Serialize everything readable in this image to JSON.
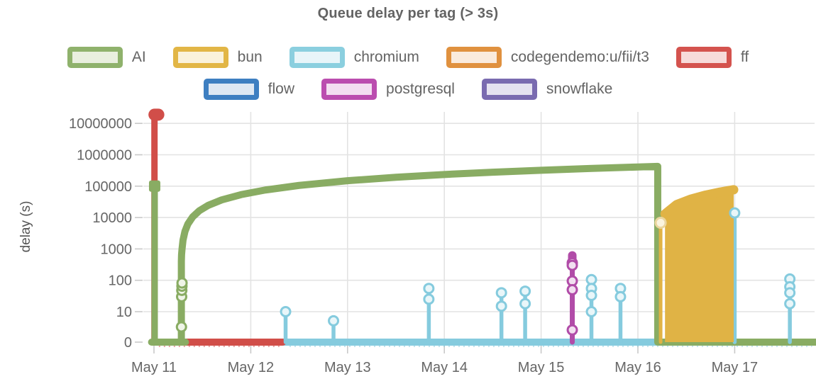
{
  "title": {
    "text": "Queue delay per tag (> 3s)"
  },
  "legend": {
    "rows": [
      [
        {
          "label": "AI",
          "color": "#8FB26C",
          "fill": "#E9EFDF"
        },
        {
          "label": "bun",
          "color": "#E2B646",
          "fill": "#FAF2DB"
        },
        {
          "label": "chromium",
          "color": "#8BCFDF",
          "fill": "#E8F5F9"
        },
        {
          "label": "codegendemo:u/fii/t3",
          "color": "#E0913F",
          "fill": "#FAEBDD"
        },
        {
          "label": "ff",
          "color": "#D4534E",
          "fill": "#F7DBDA"
        }
      ],
      [
        {
          "label": "flow",
          "color": "#3E7FC1",
          "fill": "#DEE8F3"
        },
        {
          "label": "postgresql",
          "color": "#BB4DAF",
          "fill": "#F3DEF1"
        },
        {
          "label": "snowflake",
          "color": "#7A6BB0",
          "fill": "#E5E2F0"
        }
      ]
    ]
  },
  "chart_data": {
    "type": "line",
    "title": "Queue delay per tag (> 3s)",
    "xlabel": "",
    "ylabel": "delay (s)",
    "x_axis": {
      "unit": "date (May 2024, day fraction)",
      "ticks": [
        11,
        12,
        13,
        14,
        15,
        16,
        17
      ],
      "tick_labels": [
        "May 11",
        "May 12",
        "May 13",
        "May 14",
        "May 15",
        "May 16",
        "May 17"
      ],
      "range": [
        10.89,
        17.84
      ],
      "grid": true
    },
    "y_axis": {
      "scale": "symlog",
      "linthresh": 10,
      "tick_values": [
        0,
        10,
        100,
        1000,
        10000,
        100000,
        1000000,
        10000000
      ],
      "tick_labels": [
        "0",
        "10",
        "100",
        "1000",
        "10000",
        "100000",
        "1000000",
        "10000000"
      ],
      "range": [
        0,
        25000000
      ],
      "grid": true
    },
    "series": [
      {
        "name": "chromium",
        "color": "#85CBDE",
        "elements": [
          {
            "kind": "line",
            "w": 10,
            "pts": [
              [
                12.33,
                0
              ],
              [
                17.84,
                0
              ]
            ]
          },
          {
            "kind": "dots",
            "w": 2,
            "dy": 6,
            "pts": [
              [
                12.4,
                0
              ],
              [
                17.8,
                0
              ]
            ]
          }
        ]
      },
      {
        "name": "ff",
        "color": "#D14E49",
        "elements": [
          {
            "kind": "line",
            "w": 10,
            "pts": [
              [
                11.005,
                0
              ],
              [
                12.33,
                0
              ]
            ]
          },
          {
            "kind": "dots",
            "w": 2,
            "dy": 6,
            "pts": [
              [
                11.05,
                0
              ],
              [
                12.3,
                0
              ]
            ]
          },
          {
            "kind": "line",
            "w": 9,
            "pts": [
              [
                11.005,
                0
              ],
              [
                11.005,
                19000000
              ]
            ]
          },
          {
            "kind": "line",
            "w": 17,
            "pts": [
              [
                11.005,
                19000000
              ],
              [
                11.045,
                19000000
              ]
            ]
          }
        ]
      },
      {
        "name": "AI",
        "color": "#89AC63",
        "elements": [
          {
            "kind": "line",
            "w": 10,
            "pts": [
              [
                10.975,
                0
              ],
              [
                11.325,
                0
              ]
            ]
          },
          {
            "kind": "line",
            "w": 9,
            "pts": [
              [
                11.007,
                0
              ],
              [
                11.007,
                100000
              ]
            ]
          },
          {
            "kind": "square",
            "size": 16,
            "at": [
              11.007,
              100000
            ]
          },
          {
            "kind": "line",
            "w": 10,
            "pts": [
              [
                11.283,
                0
              ],
              [
                11.283,
                400
              ],
              [
                11.285,
                650
              ],
              [
                11.29,
                1000
              ],
              [
                11.3,
                1900
              ],
              [
                11.32,
                3600
              ],
              [
                11.35,
                6200
              ],
              [
                11.4,
                10500
              ],
              [
                11.47,
                16600
              ],
              [
                11.56,
                24400
              ],
              [
                11.7,
                36500
              ],
              [
                11.9,
                53700
              ],
              [
                12.15,
                75300
              ],
              [
                12.5,
                105600
              ],
              [
                13.0,
                148800
              ],
              [
                13.5,
                192000
              ],
              [
                14.0,
                235200
              ],
              [
                14.5,
                278400
              ],
              [
                15.0,
                321600
              ],
              [
                15.5,
                364800
              ],
              [
                16.0,
                408000
              ],
              [
                16.205,
                425700
              ],
              [
                16.205,
                0
              ],
              [
                17.84,
                0
              ]
            ]
          },
          {
            "kind": "circles",
            "r": 6.5,
            "sw": 3,
            "fill": "#EFF4E7",
            "pts": [
              [
                11.284,
                5
              ],
              [
                11.286,
                30
              ],
              [
                11.2875,
                48
              ],
              [
                11.289,
                65
              ],
              [
                11.29,
                82
              ]
            ]
          }
        ]
      },
      {
        "name": "chromium",
        "color": "#85CBDE",
        "role": "stems",
        "elements": [
          {
            "kind": "line",
            "w": 5.5,
            "pts": [
              [
                12.36,
                0
              ],
              [
                12.36,
                10
              ]
            ]
          },
          {
            "kind": "line",
            "w": 5.5,
            "pts": [
              [
                12.855,
                0
              ],
              [
                12.855,
                7
              ]
            ]
          },
          {
            "kind": "line",
            "w": 5.5,
            "pts": [
              [
                13.84,
                0
              ],
              [
                13.84,
                55
              ]
            ]
          },
          {
            "kind": "line",
            "w": 5.5,
            "pts": [
              [
                14.59,
                0
              ],
              [
                14.59,
                40
              ]
            ]
          },
          {
            "kind": "line",
            "w": 5.5,
            "pts": [
              [
                14.835,
                0
              ],
              [
                14.835,
                45
              ]
            ]
          },
          {
            "kind": "line",
            "w": 5.5,
            "pts": [
              [
                15.52,
                0
              ],
              [
                15.52,
                105
              ]
            ]
          },
          {
            "kind": "line",
            "w": 5.5,
            "pts": [
              [
                15.82,
                0
              ],
              [
                15.82,
                55
              ]
            ]
          },
          {
            "kind": "line",
            "w": 5.5,
            "pts": [
              [
                17.0,
                0
              ],
              [
                17.0,
                14000
              ]
            ]
          },
          {
            "kind": "line",
            "w": 5.5,
            "pts": [
              [
                17.57,
                0
              ],
              [
                17.57,
                110
              ]
            ]
          }
        ]
      },
      {
        "name": "postgresql",
        "color": "#B14CA8",
        "elements": [
          {
            "kind": "line",
            "w": 7,
            "pts": [
              [
                15.322,
                0
              ],
              [
                15.322,
                620
              ]
            ]
          },
          {
            "kind": "line",
            "w": 12,
            "pts": [
              [
                15.322,
                300
              ],
              [
                15.322,
                620
              ]
            ]
          },
          {
            "kind": "circles",
            "r": 6.5,
            "sw": 3,
            "fill": "#F2DFF0",
            "pts": [
              [
                15.322,
                360
              ],
              [
                15.322,
                300
              ],
              [
                15.322,
                95
              ],
              [
                15.322,
                50
              ],
              [
                15.322,
                4
              ]
            ]
          }
        ]
      },
      {
        "name": "bun",
        "color": "#E0B345",
        "elements": [
          {
            "kind": "line",
            "w": 5,
            "pts": [
              [
                16.235,
                0
              ],
              [
                16.235,
                6800
              ]
            ]
          },
          {
            "kind": "area",
            "pts": [
              [
                16.28,
                0
              ],
              [
                16.28,
                13000
              ],
              [
                16.4,
                25900
              ],
              [
                16.55,
                38900
              ],
              [
                16.7,
                51800
              ],
              [
                16.85,
                64800
              ],
              [
                16.99,
                77000
              ],
              [
                16.99,
                0
              ]
            ]
          },
          {
            "kind": "line",
            "w": 13,
            "pts": [
              [
                16.28,
                13000
              ],
              [
                16.4,
                25900
              ],
              [
                16.55,
                38900
              ],
              [
                16.7,
                51800
              ],
              [
                16.85,
                64800
              ],
              [
                16.99,
                77000
              ]
            ]
          },
          {
            "kind": "circles",
            "r": 7,
            "sw": 3,
            "fill": "#FBF4DF",
            "stroke": "#EBD69E",
            "pts": [
              [
                16.235,
                6800
              ]
            ]
          }
        ]
      },
      {
        "name": "chromium",
        "color": "#85CBDE",
        "role": "markers",
        "elements": [
          {
            "kind": "circles",
            "r": 6.5,
            "sw": 3,
            "fill": "#E9F6F9",
            "pts": [
              [
                12.36,
                10
              ],
              [
                12.855,
                7
              ],
              [
                13.84,
                55
              ],
              [
                13.84,
                25
              ],
              [
                14.59,
                40
              ],
              [
                14.59,
                15
              ],
              [
                14.835,
                45
              ],
              [
                14.835,
                18
              ],
              [
                15.52,
                105
              ],
              [
                15.52,
                55
              ],
              [
                15.52,
                33
              ],
              [
                15.52,
                10
              ],
              [
                15.82,
                55
              ],
              [
                15.82,
                30
              ],
              [
                17.0,
                14000
              ],
              [
                17.57,
                110
              ],
              [
                17.57,
                62
              ],
              [
                17.57,
                40
              ],
              [
                17.57,
                18
              ]
            ]
          }
        ]
      }
    ]
  }
}
